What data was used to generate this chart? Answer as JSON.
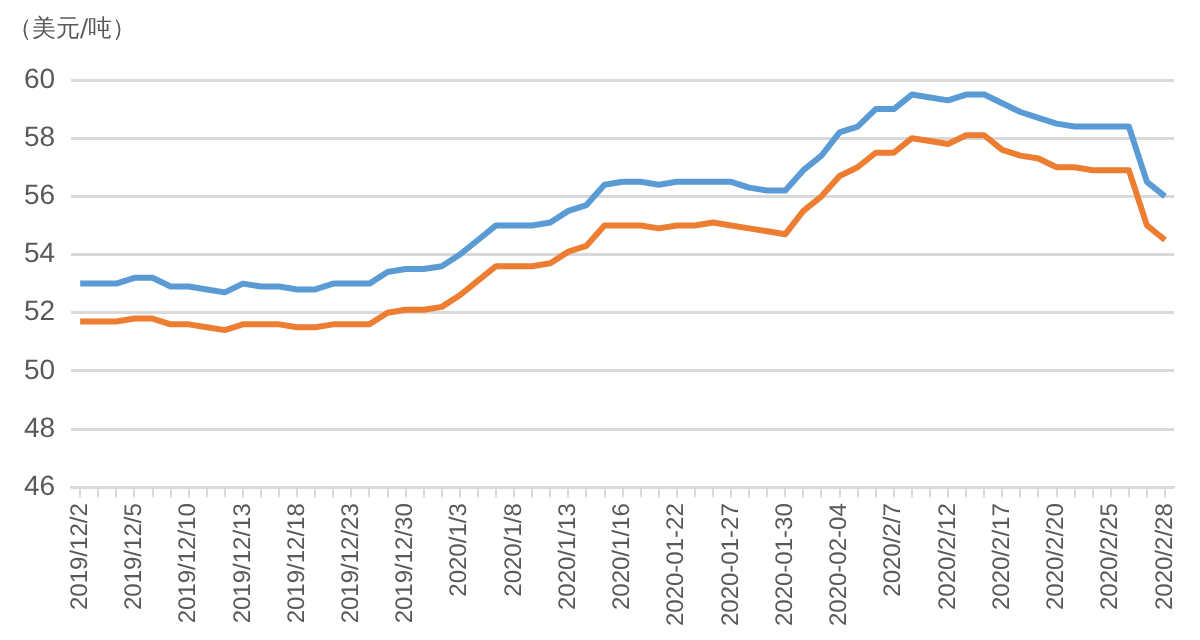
{
  "chart_data": {
    "type": "line",
    "ylabel": "（美元/吨）",
    "categories": [
      "2019/12/2",
      null,
      null,
      "2019/12/5",
      null,
      null,
      "2019/12/10",
      null,
      null,
      "2019/12/13",
      null,
      null,
      "2019/12/18",
      null,
      null,
      "2019/12/23",
      null,
      null,
      "2019/12/30",
      null,
      null,
      "2020/1/3",
      null,
      null,
      "2020/1/8",
      null,
      null,
      "2020/1/13",
      null,
      null,
      "2020/1/16",
      null,
      null,
      "2020-01-22",
      null,
      null,
      "2020-01-27",
      null,
      null,
      "2020-01-30",
      null,
      null,
      "2020-02-04",
      null,
      null,
      "2020/2/7",
      null,
      null,
      "2020/2/12",
      null,
      null,
      "2020/2/17",
      null,
      null,
      "2020/2/20",
      null,
      null,
      "2020/2/25",
      null,
      null,
      "2020/2/28"
    ],
    "series": [
      {
        "color": "#5b9bd5",
        "values": [
          53.0,
          53.0,
          53.0,
          53.2,
          53.2,
          52.9,
          52.9,
          52.8,
          52.7,
          53.0,
          52.9,
          52.9,
          52.8,
          52.8,
          53.0,
          53.0,
          53.0,
          53.4,
          53.5,
          53.5,
          53.6,
          54.0,
          54.5,
          55.0,
          55.0,
          55.0,
          55.1,
          55.5,
          55.7,
          56.4,
          56.5,
          56.5,
          56.4,
          56.5,
          56.5,
          56.5,
          56.5,
          56.3,
          56.2,
          56.2,
          56.9,
          57.4,
          58.2,
          58.4,
          59.0,
          59.0,
          59.5,
          59.4,
          59.3,
          59.5,
          59.5,
          59.2,
          58.9,
          58.7,
          58.5,
          58.4,
          58.4,
          58.4,
          58.4,
          56.5,
          56.0
        ]
      },
      {
        "color": "#ed7d31",
        "values": [
          51.7,
          51.7,
          51.7,
          51.8,
          51.8,
          51.6,
          51.6,
          51.5,
          51.4,
          51.6,
          51.6,
          51.6,
          51.5,
          51.5,
          51.6,
          51.6,
          51.6,
          52.0,
          52.1,
          52.1,
          52.2,
          52.6,
          53.1,
          53.6,
          53.6,
          53.6,
          53.7,
          54.1,
          54.3,
          55.0,
          55.0,
          55.0,
          54.9,
          55.0,
          55.0,
          55.1,
          55.0,
          54.9,
          54.8,
          54.7,
          55.5,
          56.0,
          56.7,
          57.0,
          57.5,
          57.5,
          58.0,
          57.9,
          57.8,
          58.1,
          58.1,
          57.6,
          57.4,
          57.3,
          57.0,
          57.0,
          56.9,
          56.9,
          56.9,
          55.0,
          54.5
        ]
      }
    ],
    "ylim": [
      46,
      60
    ],
    "yticks": [
      46,
      48,
      50,
      52,
      54,
      56,
      58,
      60
    ],
    "grid": "y",
    "legend": false,
    "marker": "none",
    "line_style": "solid"
  }
}
